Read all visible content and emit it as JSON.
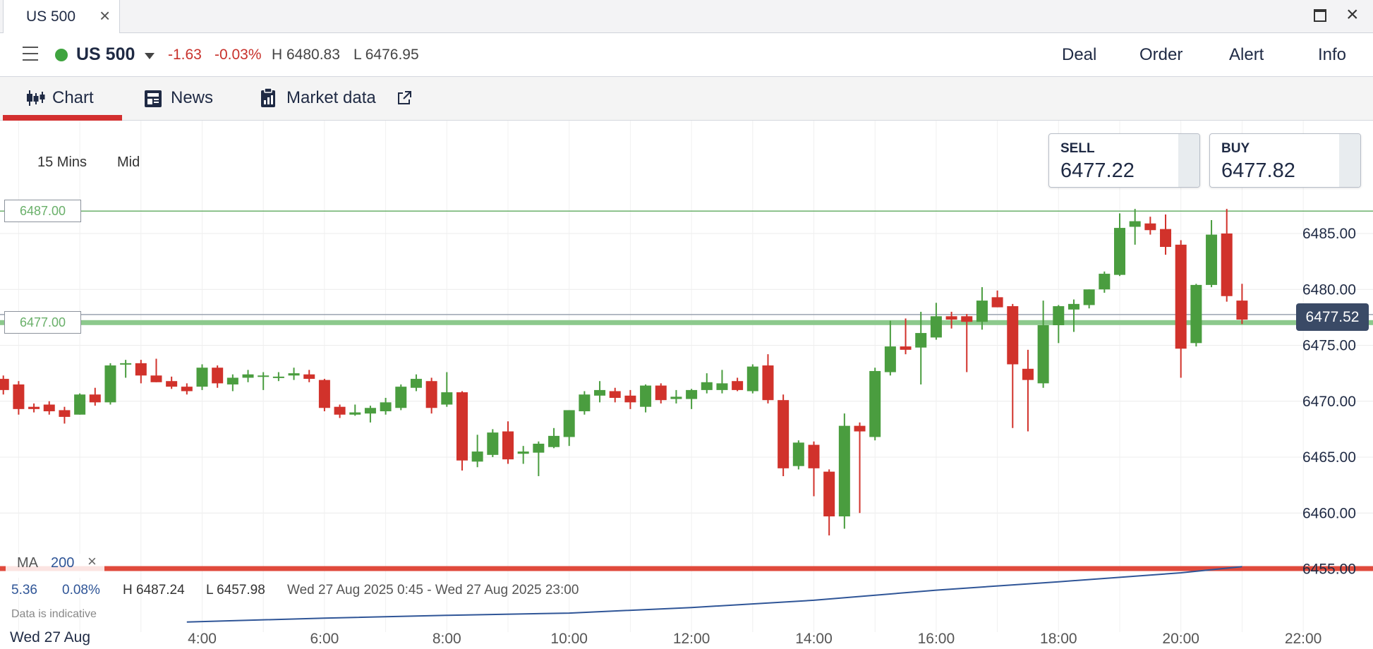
{
  "window": {
    "tab_title": "US 500",
    "close_glyph": "×",
    "max_icon": "maximize-icon",
    "close_icon": "close-icon"
  },
  "instrument": {
    "name": "US 500",
    "status_color": "#3fa43f",
    "change": "-1.63",
    "change_pct": "-0.03%",
    "high": "H 6480.83",
    "low": "L 6476.95"
  },
  "actions": [
    "Deal",
    "Order",
    "Alert",
    "Info"
  ],
  "subtabs": [
    {
      "label": "Chart",
      "icon": "candlestick-icon",
      "active": true
    },
    {
      "label": "News",
      "icon": "news-icon",
      "active": false
    },
    {
      "label": "Market data",
      "icon": "clipboard-chart-icon",
      "active": false,
      "external": "external-link-icon"
    }
  ],
  "timeframe": {
    "interval": "15 Mins",
    "price_type": "Mid"
  },
  "quotes": {
    "sell": {
      "label": "SELL",
      "value": "6477.22"
    },
    "buy": {
      "label": "BUY",
      "value": "6477.82"
    }
  },
  "current_price": "6477.52",
  "indicator": {
    "name": "MA",
    "period": "200",
    "close_glyph": "×"
  },
  "stats": {
    "change": "5.36",
    "change_pct": "0.08%",
    "high": "H 6487.24",
    "low": "L 6457.98",
    "range": "Wed 27 Aug 2025 0:45 - Wed 27 Aug 2025 23:00"
  },
  "note": "Data is indicative",
  "date_label": "Wed 27 Aug",
  "colors": {
    "up": "#4a9d3f",
    "down": "#d1322b",
    "ma": "#2f5597",
    "level": "#6ab06a",
    "accent": "#d32f2f"
  },
  "chart_data": {
    "type": "candlestick",
    "interval_minutes": 15,
    "y_ticks": [
      "6485.00",
      "6480.00",
      "6475.00",
      "6470.00",
      "6465.00",
      "6460.00",
      "6455.00"
    ],
    "x_ticks": [
      "4:00",
      "6:00",
      "8:00",
      "10:00",
      "12:00",
      "14:00",
      "16:00",
      "18:00",
      "20:00",
      "22:00"
    ],
    "ylim": [
      6452,
      6494
    ],
    "xlim_hours": [
      0.75,
      22.5
    ],
    "levels": [
      {
        "label": "6487.00",
        "value": 6487.0
      },
      {
        "label": "6477.00",
        "value": 6477.0
      },
      {
        "label": "6455.00",
        "value": 6455.0
      }
    ],
    "candles": [
      {
        "t": "0:45",
        "o": 6472.0,
        "h": 6472.3,
        "l": 6470.6,
        "c": 6471.0
      },
      {
        "t": "1:00",
        "o": 6471.5,
        "h": 6471.8,
        "l": 6468.8,
        "c": 6469.3
      },
      {
        "t": "1:15",
        "o": 6469.5,
        "h": 6469.8,
        "l": 6469.0,
        "c": 6469.3
      },
      {
        "t": "1:30",
        "o": 6469.7,
        "h": 6470.0,
        "l": 6468.8,
        "c": 6469.1
      },
      {
        "t": "1:45",
        "o": 6469.2,
        "h": 6469.5,
        "l": 6468.0,
        "c": 6468.6
      },
      {
        "t": "2:00",
        "o": 6468.8,
        "h": 6470.7,
        "l": 6468.8,
        "c": 6470.6
      },
      {
        "t": "2:15",
        "o": 6470.6,
        "h": 6471.2,
        "l": 6469.6,
        "c": 6469.9
      },
      {
        "t": "2:30",
        "o": 6469.9,
        "h": 6473.4,
        "l": 6469.7,
        "c": 6473.2
      },
      {
        "t": "2:45",
        "o": 6473.3,
        "h": 6473.7,
        "l": 6472.1,
        "c": 6473.4
      },
      {
        "t": "3:00",
        "o": 6473.4,
        "h": 6473.7,
        "l": 6471.6,
        "c": 6472.3
      },
      {
        "t": "3:15",
        "o": 6472.3,
        "h": 6473.8,
        "l": 6471.7,
        "c": 6471.7
      },
      {
        "t": "3:30",
        "o": 6471.8,
        "h": 6472.2,
        "l": 6471.1,
        "c": 6471.3
      },
      {
        "t": "3:45",
        "o": 6471.3,
        "h": 6471.6,
        "l": 6470.6,
        "c": 6470.9
      },
      {
        "t": "4:00",
        "o": 6471.3,
        "h": 6473.3,
        "l": 6471.0,
        "c": 6473.0
      },
      {
        "t": "4:15",
        "o": 6473.0,
        "h": 6473.2,
        "l": 6471.2,
        "c": 6471.6
      },
      {
        "t": "4:30",
        "o": 6471.5,
        "h": 6472.4,
        "l": 6470.9,
        "c": 6472.1
      },
      {
        "t": "4:45",
        "o": 6472.1,
        "h": 6472.8,
        "l": 6471.7,
        "c": 6472.4
      },
      {
        "t": "5:00",
        "o": 6472.2,
        "h": 6472.6,
        "l": 6471.0,
        "c": 6472.3
      },
      {
        "t": "5:15",
        "o": 6472.1,
        "h": 6472.6,
        "l": 6471.8,
        "c": 6472.2
      },
      {
        "t": "5:30",
        "o": 6472.3,
        "h": 6473.0,
        "l": 6471.9,
        "c": 6472.5
      },
      {
        "t": "5:45",
        "o": 6472.4,
        "h": 6472.8,
        "l": 6471.7,
        "c": 6472.0
      },
      {
        "t": "6:00",
        "o": 6471.9,
        "h": 6472.0,
        "l": 6469.1,
        "c": 6469.4
      },
      {
        "t": "6:15",
        "o": 6469.5,
        "h": 6469.7,
        "l": 6468.5,
        "c": 6468.8
      },
      {
        "t": "6:30",
        "o": 6468.8,
        "h": 6469.7,
        "l": 6468.7,
        "c": 6469.0
      },
      {
        "t": "6:45",
        "o": 6468.9,
        "h": 6469.6,
        "l": 6468.1,
        "c": 6469.4
      },
      {
        "t": "7:00",
        "o": 6469.1,
        "h": 6470.3,
        "l": 6468.8,
        "c": 6469.9
      },
      {
        "t": "7:15",
        "o": 6469.4,
        "h": 6471.5,
        "l": 6469.2,
        "c": 6471.3
      },
      {
        "t": "7:30",
        "o": 6471.2,
        "h": 6472.4,
        "l": 6470.9,
        "c": 6472.0
      },
      {
        "t": "7:45",
        "o": 6471.8,
        "h": 6472.1,
        "l": 6468.9,
        "c": 6469.4
      },
      {
        "t": "8:00",
        "o": 6469.7,
        "h": 6472.6,
        "l": 6469.5,
        "c": 6470.8
      },
      {
        "t": "8:15",
        "o": 6470.8,
        "h": 6470.9,
        "l": 6463.8,
        "c": 6464.7
      },
      {
        "t": "8:30",
        "o": 6464.6,
        "h": 6467.0,
        "l": 6464.1,
        "c": 6465.5
      },
      {
        "t": "8:45",
        "o": 6465.2,
        "h": 6467.5,
        "l": 6465.0,
        "c": 6467.2
      },
      {
        "t": "9:00",
        "o": 6467.3,
        "h": 6468.2,
        "l": 6464.4,
        "c": 6464.8
      },
      {
        "t": "9:15",
        "o": 6465.3,
        "h": 6466.0,
        "l": 6464.4,
        "c": 6465.5
      },
      {
        "t": "9:30",
        "o": 6465.4,
        "h": 6466.4,
        "l": 6463.3,
        "c": 6466.2
      },
      {
        "t": "9:45",
        "o": 6465.9,
        "h": 6467.6,
        "l": 6465.8,
        "c": 6466.9
      },
      {
        "t": "10:00",
        "o": 6466.8,
        "h": 6469.2,
        "l": 6466.0,
        "c": 6469.2
      },
      {
        "t": "10:15",
        "o": 6469.1,
        "h": 6470.9,
        "l": 6468.8,
        "c": 6470.6
      },
      {
        "t": "10:30",
        "o": 6470.5,
        "h": 6471.8,
        "l": 6469.9,
        "c": 6471.0
      },
      {
        "t": "10:45",
        "o": 6470.9,
        "h": 6471.2,
        "l": 6469.9,
        "c": 6470.3
      },
      {
        "t": "11:00",
        "o": 6470.5,
        "h": 6471.0,
        "l": 6469.3,
        "c": 6469.9
      },
      {
        "t": "11:15",
        "o": 6469.5,
        "h": 6471.5,
        "l": 6469.0,
        "c": 6471.4
      },
      {
        "t": "11:30",
        "o": 6471.4,
        "h": 6471.6,
        "l": 6469.8,
        "c": 6470.1
      },
      {
        "t": "11:45",
        "o": 6470.2,
        "h": 6471.0,
        "l": 6469.8,
        "c": 6470.4
      },
      {
        "t": "12:00",
        "o": 6470.2,
        "h": 6471.1,
        "l": 6469.3,
        "c": 6471.0
      },
      {
        "t": "12:15",
        "o": 6471.0,
        "h": 6472.5,
        "l": 6470.7,
        "c": 6471.7
      },
      {
        "t": "12:30",
        "o": 6471.0,
        "h": 6472.8,
        "l": 6470.7,
        "c": 6471.6
      },
      {
        "t": "12:45",
        "o": 6471.8,
        "h": 6472.1,
        "l": 6470.9,
        "c": 6471.0
      },
      {
        "t": "13:00",
        "o": 6470.9,
        "h": 6473.3,
        "l": 6470.7,
        "c": 6473.1
      },
      {
        "t": "13:15",
        "o": 6473.2,
        "h": 6474.2,
        "l": 6469.8,
        "c": 6470.1
      },
      {
        "t": "13:30",
        "o": 6470.1,
        "h": 6470.6,
        "l": 6463.3,
        "c": 6464.0
      },
      {
        "t": "13:45",
        "o": 6464.2,
        "h": 6466.5,
        "l": 6463.9,
        "c": 6466.3
      },
      {
        "t": "14:00",
        "o": 6466.1,
        "h": 6466.4,
        "l": 6461.5,
        "c": 6464.0
      },
      {
        "t": "14:15",
        "o": 6463.7,
        "h": 6463.9,
        "l": 6458.0,
        "c": 6459.7
      },
      {
        "t": "14:30",
        "o": 6459.7,
        "h": 6468.9,
        "l": 6458.6,
        "c": 6467.8
      },
      {
        "t": "14:45",
        "o": 6467.8,
        "h": 6468.1,
        "l": 6460.0,
        "c": 6467.3
      },
      {
        "t": "15:00",
        "o": 6466.8,
        "h": 6473.0,
        "l": 6466.5,
        "c": 6472.7
      },
      {
        "t": "15:15",
        "o": 6472.6,
        "h": 6477.2,
        "l": 6472.3,
        "c": 6474.9
      },
      {
        "t": "15:30",
        "o": 6474.9,
        "h": 6477.4,
        "l": 6474.2,
        "c": 6474.6
      },
      {
        "t": "15:45",
        "o": 6474.8,
        "h": 6478.0,
        "l": 6471.5,
        "c": 6476.1
      },
      {
        "t": "16:00",
        "o": 6475.7,
        "h": 6478.8,
        "l": 6475.5,
        "c": 6477.6
      },
      {
        "t": "16:15",
        "o": 6477.6,
        "h": 6478.0,
        "l": 6476.5,
        "c": 6477.3
      },
      {
        "t": "16:30",
        "o": 6477.6,
        "h": 6477.8,
        "l": 6472.6,
        "c": 6477.1
      },
      {
        "t": "16:45",
        "o": 6477.1,
        "h": 6480.2,
        "l": 6476.4,
        "c": 6479.0
      },
      {
        "t": "17:00",
        "o": 6479.3,
        "h": 6479.9,
        "l": 6478.4,
        "c": 6478.4
      },
      {
        "t": "17:15",
        "o": 6478.5,
        "h": 6478.7,
        "l": 6467.6,
        "c": 6473.3
      },
      {
        "t": "17:30",
        "o": 6472.9,
        "h": 6474.6,
        "l": 6467.3,
        "c": 6471.9
      },
      {
        "t": "17:45",
        "o": 6471.6,
        "h": 6479.0,
        "l": 6471.2,
        "c": 6476.8
      },
      {
        "t": "18:00",
        "o": 6476.8,
        "h": 6478.6,
        "l": 6475.2,
        "c": 6478.5
      },
      {
        "t": "18:15",
        "o": 6478.2,
        "h": 6479.1,
        "l": 6476.2,
        "c": 6478.7
      },
      {
        "t": "18:30",
        "o": 6478.6,
        "h": 6480.0,
        "l": 6478.3,
        "c": 6480.0
      },
      {
        "t": "18:45",
        "o": 6480.0,
        "h": 6481.6,
        "l": 6479.7,
        "c": 6481.4
      },
      {
        "t": "19:00",
        "o": 6481.3,
        "h": 6486.8,
        "l": 6481.2,
        "c": 6485.5
      },
      {
        "t": "19:15",
        "o": 6485.6,
        "h": 6487.2,
        "l": 6484.0,
        "c": 6486.1
      },
      {
        "t": "19:30",
        "o": 6485.9,
        "h": 6486.5,
        "l": 6484.9,
        "c": 6485.3
      },
      {
        "t": "19:45",
        "o": 6485.4,
        "h": 6486.7,
        "l": 6483.1,
        "c": 6483.8
      },
      {
        "t": "20:00",
        "o": 6484.0,
        "h": 6484.4,
        "l": 6472.1,
        "c": 6474.7
      },
      {
        "t": "20:15",
        "o": 6475.2,
        "h": 6480.5,
        "l": 6474.9,
        "c": 6480.4
      },
      {
        "t": "20:30",
        "o": 6480.4,
        "h": 6486.2,
        "l": 6480.2,
        "c": 6484.9
      },
      {
        "t": "20:45",
        "o": 6485.0,
        "h": 6487.2,
        "l": 6478.9,
        "c": 6479.4
      },
      {
        "t": "21:00",
        "o": 6479.0,
        "h": 6480.5,
        "l": 6476.9,
        "c": 6477.3
      }
    ],
    "ma_series": {
      "name": "MA 200",
      "points": [
        {
          "t": "3:45",
          "v": 6450.25
        },
        {
          "t": "6:00",
          "v": 6450.6
        },
        {
          "t": "8:00",
          "v": 6450.85
        },
        {
          "t": "10:00",
          "v": 6451.05
        },
        {
          "t": "12:00",
          "v": 6451.55
        },
        {
          "t": "14:00",
          "v": 6452.2
        },
        {
          "t": "16:00",
          "v": 6453.1
        },
        {
          "t": "18:00",
          "v": 6453.85
        },
        {
          "t": "20:00",
          "v": 6454.65
        },
        {
          "t": "21:00",
          "v": 6455.2
        }
      ]
    }
  }
}
